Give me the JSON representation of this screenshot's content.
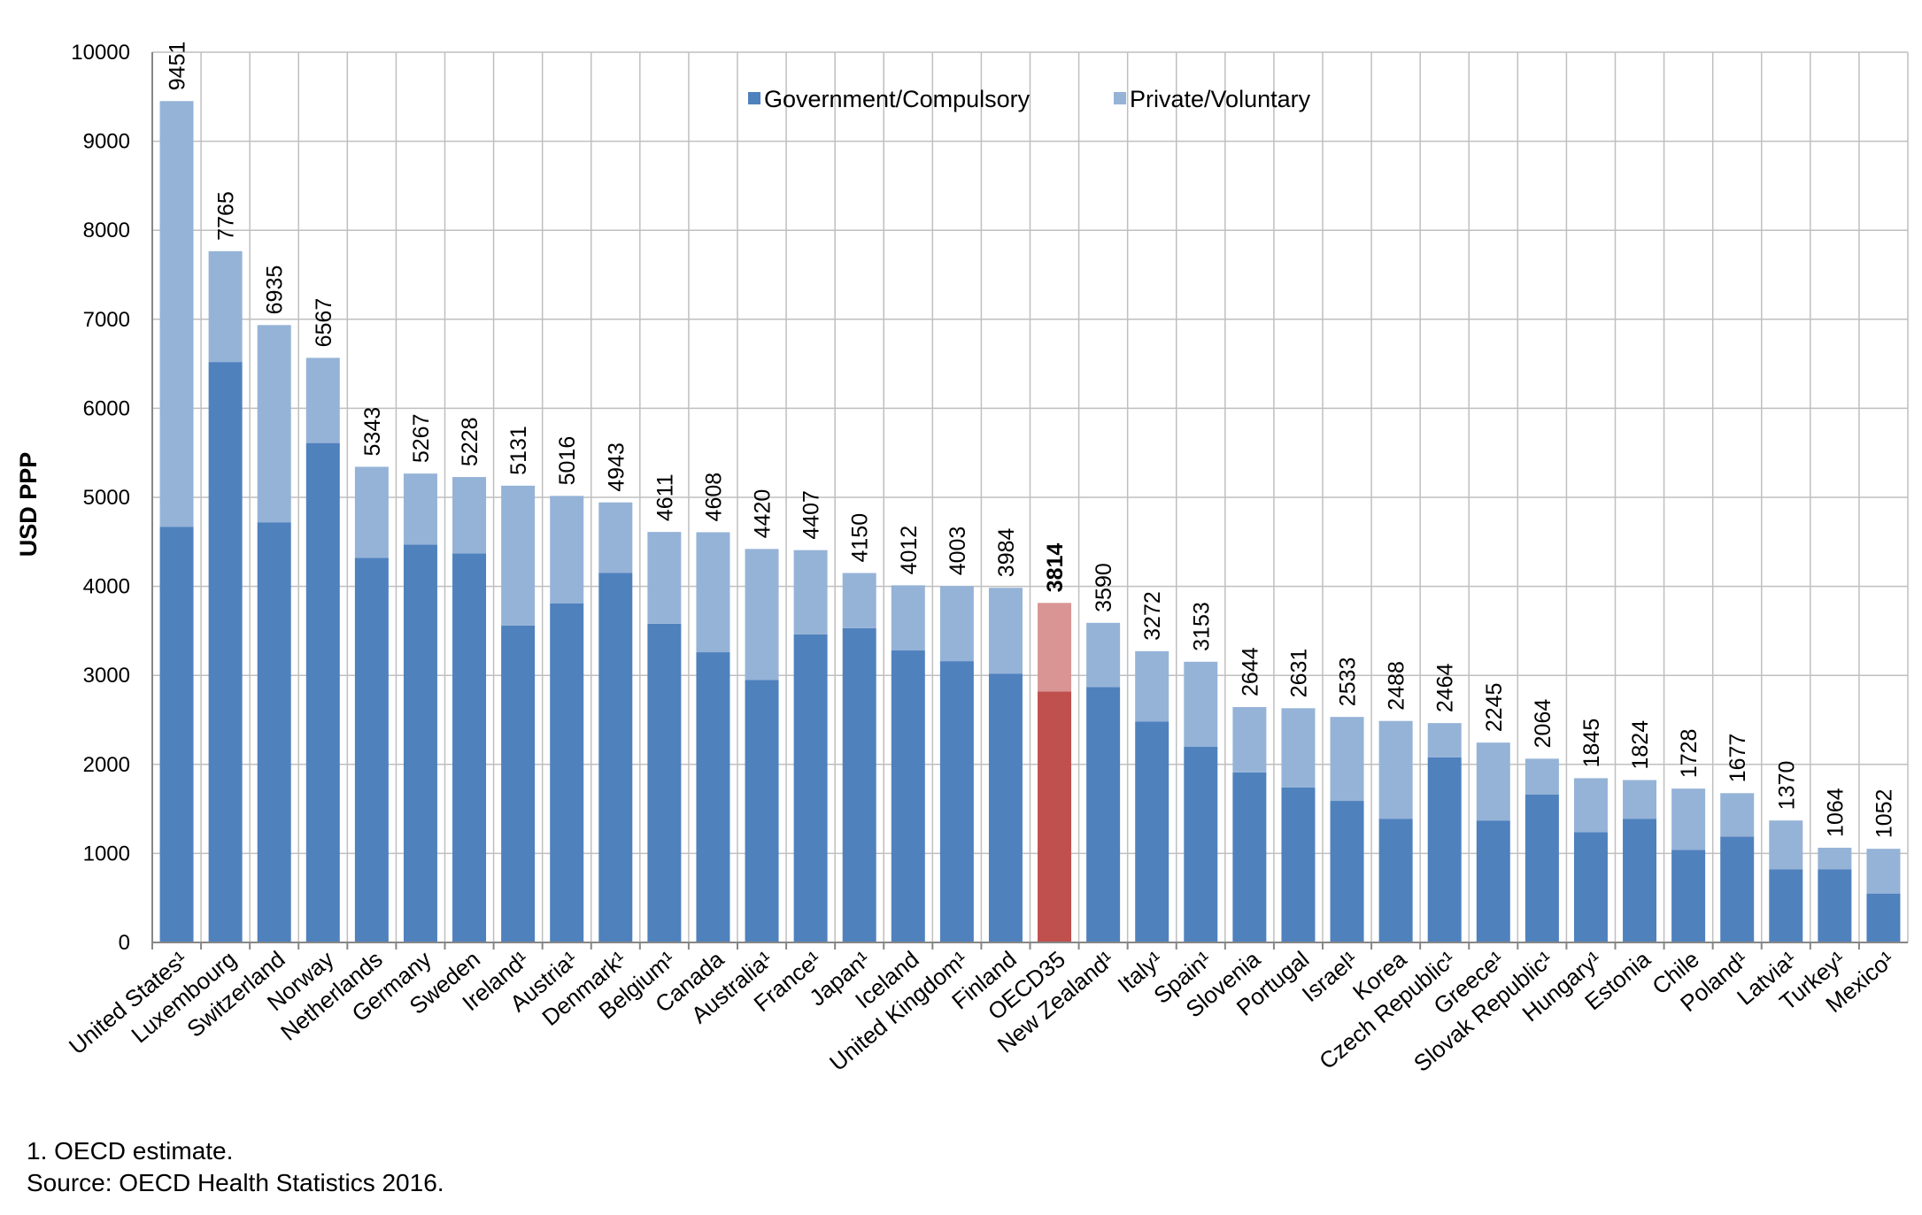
{
  "chart_data": {
    "type": "bar",
    "stacked": true,
    "ylabel": "USD PPP",
    "ylim": [
      0,
      10000
    ],
    "yticks": [
      0,
      1000,
      2000,
      3000,
      4000,
      5000,
      6000,
      7000,
      8000,
      9000,
      10000
    ],
    "grid": true,
    "legend_position": "top-center",
    "categories": [
      "United States¹",
      "Luxembourg",
      "Switzerland",
      "Norway",
      "Netherlands",
      "Germany",
      "Sweden",
      "Ireland¹",
      "Austria¹",
      "Denmark¹",
      "Belgium¹",
      "Canada",
      "Australia¹",
      "France¹",
      "Japan¹",
      "Iceland",
      "United Kingdom¹",
      "Finland",
      "OECD35",
      "New Zealand¹",
      "Italy¹",
      "Spain¹",
      "Slovenia",
      "Portugal",
      "Israel¹",
      "Korea",
      "Czech Republic¹",
      "Greece¹",
      "Slovak Republic¹",
      "Hungary¹",
      "Estonia",
      "Chile",
      "Poland¹",
      "Latvia¹",
      "Turkey¹",
      "Mexico¹"
    ],
    "highlight_category": "OECD35",
    "series": [
      {
        "name": "Government/Compulsory",
        "color": "#4f81bd",
        "highlight_color": "#c0504d",
        "values": [
          4670,
          6520,
          4720,
          5610,
          4320,
          4470,
          4370,
          3560,
          3810,
          4150,
          3580,
          3260,
          2950,
          3460,
          3530,
          3280,
          3160,
          3020,
          2820,
          2870,
          2480,
          2200,
          1910,
          1740,
          1590,
          1390,
          2080,
          1370,
          1660,
          1240,
          1390,
          1040,
          1190,
          820,
          820,
          550
        ]
      },
      {
        "name": "Private/Voluntary",
        "color": "#95b3d7",
        "highlight_color": "#d99594",
        "values": [
          4781,
          1245,
          2215,
          957,
          1023,
          797,
          858,
          1571,
          1206,
          793,
          1031,
          1348,
          1470,
          947,
          620,
          732,
          843,
          964,
          994,
          720,
          792,
          953,
          734,
          891,
          943,
          1098,
          384,
          875,
          404,
          605,
          434,
          688,
          487,
          550,
          244,
          502
        ]
      }
    ],
    "totals": [
      "9451",
      "7765",
      "6935",
      "6567",
      "5343",
      "5267",
      "5228",
      "5131",
      "5016",
      "4943",
      "4611",
      "4608",
      "4420",
      "4407",
      "4150",
      "4012",
      "4003",
      "3984",
      "3814",
      "3590",
      "3272",
      "3153",
      "2644",
      "2631",
      "2533",
      "2488",
      "2464",
      "2245",
      "2064",
      "1845",
      "1824",
      "1728",
      "1677",
      "1370",
      "1064",
      "1052"
    ]
  },
  "notes": {
    "line1": "1. OECD estimate.",
    "line2": "Source: OECD Health Statistics 2016."
  }
}
